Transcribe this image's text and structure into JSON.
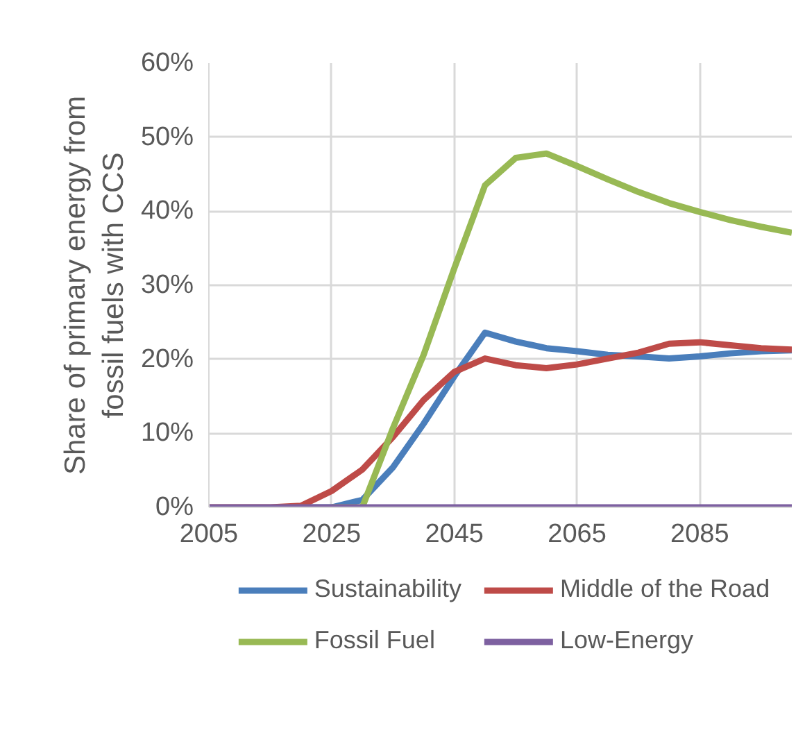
{
  "chart_data": {
    "type": "line",
    "ylabel": "Share of primary energy from\nfossil fuels with CCS",
    "x": [
      2005,
      2010,
      2015,
      2020,
      2025,
      2030,
      2035,
      2040,
      2045,
      2050,
      2055,
      2060,
      2065,
      2070,
      2075,
      2080,
      2085,
      2090,
      2095,
      2100
    ],
    "series": [
      {
        "name": "Sustainability",
        "color": "#4a7ebb",
        "values": [
          null,
          null,
          null,
          0,
          0,
          1,
          5.4,
          11.3,
          17.7,
          23.6,
          22.4,
          21.5,
          21.1,
          20.6,
          20.4,
          20.1,
          20.4,
          20.8,
          21.1,
          21.2
        ]
      },
      {
        "name": "Middle of the Road",
        "color": "#be4b48",
        "values": [
          0,
          0,
          0,
          0.2,
          2.2,
          5.1,
          9.5,
          14.5,
          18.3,
          20.1,
          19.2,
          18.8,
          19.3,
          20.1,
          20.9,
          22.1,
          22.3,
          21.9,
          21.5,
          21.3
        ]
      },
      {
        "name": "Fossil Fuel",
        "color": "#98b954",
        "values": [
          null,
          null,
          null,
          null,
          0,
          0,
          10.7,
          20.6,
          32.3,
          43.5,
          47.2,
          47.8,
          46.1,
          44.3,
          42.6,
          41.1,
          39.9,
          38.8,
          37.9,
          37.1
        ]
      },
      {
        "name": "Low-Energy",
        "color": "#7d60a0",
        "values": [
          0,
          0,
          0,
          0,
          0,
          0,
          0,
          0,
          0,
          0,
          0,
          0,
          0,
          0,
          0,
          0,
          0,
          0,
          0,
          0
        ]
      }
    ],
    "xlim": [
      2005,
      2100
    ],
    "xticks": [
      2005,
      2025,
      2045,
      2065,
      2085
    ],
    "ylim": [
      0,
      60
    ],
    "yticks": [
      {
        "value": 0,
        "label": "0%"
      },
      {
        "value": 10,
        "label": "10%"
      },
      {
        "value": 20,
        "label": "20%"
      },
      {
        "value": 30,
        "label": "30%"
      },
      {
        "value": 40,
        "label": "40%"
      },
      {
        "value": 50,
        "label": "50%"
      },
      {
        "value": 60,
        "label": "60%"
      }
    ],
    "grid": true,
    "legend": "bottom",
    "marker": "none",
    "line_style": "solid"
  }
}
